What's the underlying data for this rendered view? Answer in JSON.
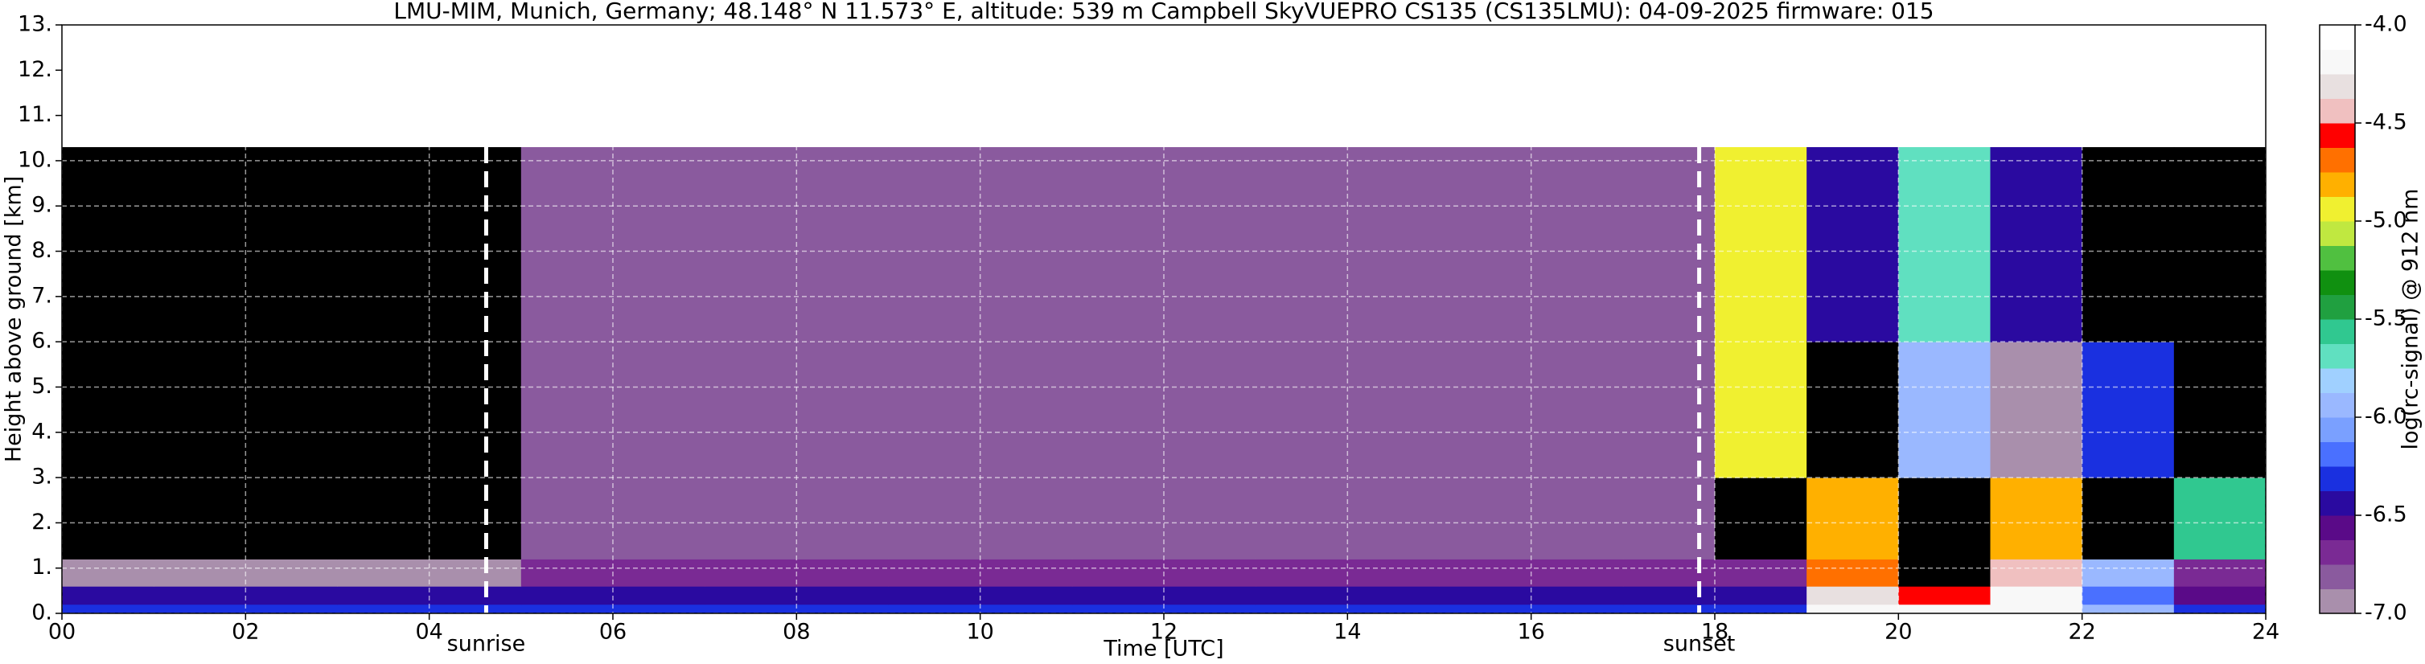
{
  "chart_data": {
    "type": "heatmap",
    "title": "LMU-MIM, Munich, Germany; 48.148° N 11.573° E, altitude: 539 m    Campbell SkyVUEPRO CS135 (CS135LMU): 04-09-2025    firmware: 015",
    "x_label": "Time [UTC]",
    "y_label": "Height above ground [km]",
    "xlim": [
      0,
      24
    ],
    "ylim": [
      0,
      13
    ],
    "xticks": [
      {
        "value": 0,
        "label": "00"
      },
      {
        "value": 2,
        "label": "02"
      },
      {
        "value": 4,
        "label": "04"
      },
      {
        "value": 6,
        "label": "06"
      },
      {
        "value": 8,
        "label": "08"
      },
      10,
      12,
      14,
      16,
      18,
      20,
      22,
      24
    ],
    "yticks": [
      {
        "value": 0,
        "label": "0."
      },
      {
        "value": 1,
        "label": "1."
      },
      {
        "value": 2,
        "label": "2."
      },
      {
        "value": 3,
        "label": "3."
      },
      {
        "value": 4,
        "label": "4."
      },
      {
        "value": 5,
        "label": "5."
      },
      {
        "value": 6,
        "label": "6."
      },
      {
        "value": 7,
        "label": "7."
      },
      {
        "value": 8,
        "label": "8."
      },
      {
        "value": 9,
        "label": "9."
      },
      {
        "value": 10,
        "label": "10."
      },
      {
        "value": 11,
        "label": "11."
      },
      {
        "value": 12,
        "label": "12."
      },
      {
        "value": 13,
        "label": "13."
      }
    ],
    "grid": true,
    "annotations": [
      {
        "x": 4.62,
        "label": "sunrise"
      },
      {
        "x": 17.83,
        "label": "sunset"
      }
    ],
    "heatmap": {
      "x_edges": [
        0,
        1,
        2,
        3,
        4,
        5,
        6,
        7,
        8,
        9,
        10,
        11,
        12,
        13,
        14,
        15,
        16,
        17,
        18,
        19,
        20,
        21,
        22,
        23,
        24
      ],
      "y_edges": [
        0,
        0.2,
        0.6,
        1.2,
        3,
        6,
        10.3
      ],
      "values": [
        [
          -6.3,
          -6.3,
          -6.3,
          -6.3,
          -6.3,
          -6.3,
          -6.3,
          -6.3,
          -6.3,
          -6.3,
          -6.3,
          -6.3,
          -6.3,
          -6.3,
          -6.3,
          -6.3,
          -6.3,
          -6.3,
          -6.3,
          -4.2,
          -4.2,
          -4.2,
          -6.0,
          -6.3
        ],
        [
          -6.5,
          -6.5,
          -6.5,
          -6.5,
          -6.4,
          -6.4,
          -6.4,
          -6.4,
          -6.4,
          -6.4,
          -6.4,
          -6.4,
          -6.4,
          -6.4,
          -6.4,
          -6.4,
          -6.4,
          -6.4,
          -6.4,
          -4.3,
          -4.6,
          -4.2,
          -6.2,
          -6.6
        ],
        [
          -6.95,
          -6.95,
          -6.95,
          -6.95,
          -6.95,
          -6.7,
          -6.7,
          -6.7,
          -6.7,
          -6.7,
          -6.7,
          -6.7,
          -6.7,
          -6.7,
          -6.7,
          -6.7,
          -6.7,
          -6.7,
          -6.7,
          -4.7,
          -7.1,
          -4.4,
          -6.0,
          -6.7
        ],
        [
          -7.1,
          -7.1,
          -7.1,
          -7.1,
          -7.1,
          -6.85,
          -6.85,
          -6.85,
          -6.85,
          -6.85,
          -6.85,
          -6.85,
          -6.85,
          -6.85,
          -6.85,
          -6.85,
          -6.85,
          -6.85,
          -7.1,
          -4.8,
          -7.1,
          -4.8,
          -7.1,
          -5.6
        ],
        [
          -7.1,
          -7.1,
          -7.1,
          -7.1,
          -7.1,
          -6.85,
          -6.85,
          -6.85,
          -6.85,
          -6.85,
          -6.85,
          -6.85,
          -6.85,
          -6.85,
          -6.85,
          -6.85,
          -6.85,
          -6.85,
          -5.0,
          -7.1,
          -6.0,
          -6.9,
          -6.3,
          -7.1
        ],
        [
          -7.05,
          -7.05,
          -7.05,
          -7.05,
          -7.05,
          -6.8,
          -6.8,
          -6.8,
          -6.8,
          -6.8,
          -6.8,
          -6.8,
          -6.8,
          -6.8,
          -6.8,
          -6.8,
          -6.8,
          -6.8,
          -4.9,
          -6.4,
          -5.7,
          -6.5,
          -7.1,
          -7.1
        ]
      ]
    },
    "colorbar": {
      "label": "log(rc-signal) @ 912 nm",
      "clim": [
        -7,
        -4
      ],
      "under_color": "#000000",
      "colors": [
        "#a98fac",
        "#8a5a9e",
        "#7a2a94",
        "#5a0a88",
        "#2a0aa0",
        "#1a30e0",
        "#4a70ff",
        "#7aa0ff",
        "#9ab8ff",
        "#a0d0ff",
        "#60e0c0",
        "#30c890",
        "#20a040",
        "#109010",
        "#50c040",
        "#c0e840",
        "#f0f030",
        "#ffb000",
        "#ff7000",
        "#ff0000",
        "#f0c0c0",
        "#e8e0e0",
        "#f8f8f8",
        "#ffffff"
      ],
      "ticks": [
        {
          "value": -4,
          "label": "-4.0"
        },
        {
          "value": -4.5,
          "label": "-4.5"
        },
        {
          "value": -5,
          "label": "-5.0"
        },
        {
          "value": -5.5,
          "label": "-5.5"
        },
        {
          "value": -6,
          "label": "-6.0"
        },
        {
          "value": -6.5,
          "label": "-6.5"
        },
        {
          "value": -7,
          "label": "-7.0"
        }
      ]
    }
  }
}
